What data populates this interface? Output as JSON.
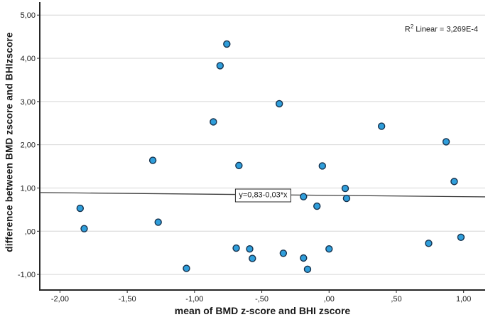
{
  "figure": {
    "x_axis_title": "mean of BMD z-score and BHI zscore",
    "y_axis_title": "difference between BMD zscore and BHIzscore",
    "equation_label": "y=0,83-0,03*x",
    "annotation": {
      "base": "R",
      "sup": "2",
      "rest": " Linear = 3,269E-4"
    }
  },
  "chart_data": {
    "type": "scatter",
    "title": "",
    "xlabel": "mean of BMD z-score and BHI zscore",
    "ylabel": "difference between BMD zscore and BHIzscore",
    "xlim": [
      -2.15,
      1.16
    ],
    "ylim": [
      -1.36,
      5.3
    ],
    "grid": "horizontal-only",
    "legend": "none",
    "x_ticks": {
      "values": [
        -2.0,
        -1.5,
        -1.0,
        -0.5,
        0.0,
        0.5,
        1.0
      ],
      "labels": [
        "-2,00",
        "-1,50",
        "-1,00",
        "-,50",
        ",00",
        ",50",
        "1,00"
      ]
    },
    "y_ticks": {
      "values": [
        5.0,
        4.0,
        3.0,
        2.0,
        1.0,
        0.0,
        -1.0
      ],
      "labels": [
        "5,00",
        "4,00",
        "3,00",
        "2,00",
        "1,00",
        ",00",
        "-1,00"
      ]
    },
    "points": [
      [
        -0.76,
        4.33
      ],
      [
        -0.81,
        3.83
      ],
      [
        -0.37,
        2.95
      ],
      [
        -0.86,
        2.53
      ],
      [
        0.39,
        2.43
      ],
      [
        0.87,
        2.07
      ],
      [
        -1.31,
        1.64
      ],
      [
        -0.67,
        1.52
      ],
      [
        -0.05,
        1.51
      ],
      [
        0.93,
        1.15
      ],
      [
        0.12,
        0.99
      ],
      [
        -0.19,
        0.8
      ],
      [
        0.13,
        0.76
      ],
      [
        -0.09,
        0.58
      ],
      [
        -1.85,
        0.53
      ],
      [
        -1.27,
        0.21
      ],
      [
        -1.82,
        0.06
      ],
      [
        0.98,
        -0.14
      ],
      [
        0.74,
        -0.28
      ],
      [
        -0.69,
        -0.39
      ],
      [
        0.0,
        -0.41
      ],
      [
        -0.59,
        -0.41
      ],
      [
        -0.34,
        -0.51
      ],
      [
        -0.19,
        -0.62
      ],
      [
        -0.57,
        -0.63
      ],
      [
        -1.06,
        -0.86
      ],
      [
        -0.16,
        -0.88
      ]
    ],
    "fit_line": {
      "intercept": 0.83,
      "slope": -0.03,
      "label": "y=0,83-0,03*x",
      "label_anchor_x": -0.49
    },
    "r_squared_text": "R2 Linear = 3,269E-4",
    "marker": {
      "fill": "#2f9edb",
      "stroke": "#16324d",
      "radius": 4.5
    },
    "colors": {
      "grid": "#d6d6d6",
      "axis": "#262626",
      "fit_line": "#3f3f3f",
      "text": "#1a1a1a"
    }
  }
}
